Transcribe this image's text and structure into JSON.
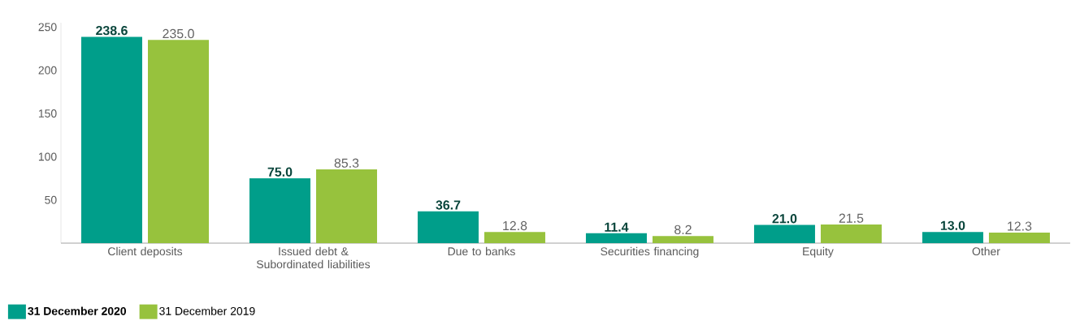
{
  "chart_data": {
    "type": "bar",
    "categories": [
      "Client deposits",
      "Issued debt & Subordinated liabilities",
      "Due to banks",
      "Securities financing",
      "Equity",
      "Other"
    ],
    "series": [
      {
        "name": "31 December 2020",
        "color": "#009e8a",
        "values": [
          238.6,
          75.0,
          36.7,
          11.4,
          21.0,
          13.0
        ],
        "value_labels": [
          "238.6",
          "75.0",
          "36.7",
          "11.4",
          "21.0",
          "13.0"
        ]
      },
      {
        "name": "31 December 2019",
        "color": "#97c23d",
        "values": [
          235.0,
          85.3,
          12.8,
          8.2,
          21.5,
          12.3
        ],
        "value_labels": [
          "235.0",
          "85.3",
          "12.8",
          "8.2",
          "21.5",
          "12.3"
        ]
      }
    ],
    "ylim": [
      0,
      255
    ],
    "yticks": [
      50,
      100,
      150,
      200,
      250
    ],
    "grid": false,
    "legend": "bottom left"
  }
}
